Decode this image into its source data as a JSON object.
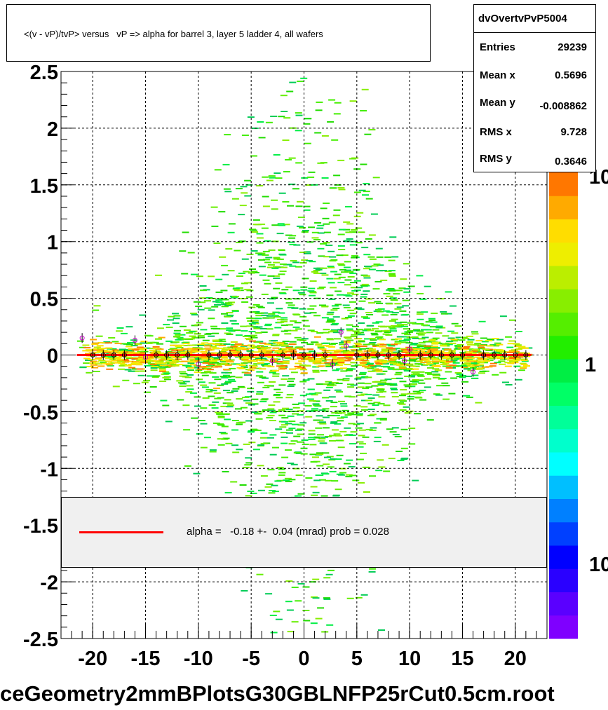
{
  "title": "<(v - vP)/tvP> versus   vP => alpha for barrel 3, layer 5 ladder 4, all wafers",
  "stats": {
    "name": "dvOvertvPvP5004",
    "rows": [
      {
        "label": "Entries",
        "value": "29239"
      },
      {
        "label": "Mean x",
        "value": "0.5696"
      },
      {
        "label": "Mean y",
        "value": "-0.008862"
      },
      {
        "label": "RMS x",
        "value": "9.728"
      },
      {
        "label": "RMS y",
        "value": "0.3646"
      }
    ]
  },
  "legend": {
    "text": "alpha =   -0.18 +-  0.04 (mrad) prob = 0.028",
    "line_color": "#ff0000"
  },
  "palette": {
    "label_top": "10",
    "label_mid": "1",
    "label_bottom": "10"
  },
  "footer": "ceGeometry2mmBPlotsG30GBLNFP25rCut0.5cm.root",
  "chart_data": {
    "type": "heatmap",
    "title": "<(v - vP)/tvP> versus   vP => alpha for barrel 3, layer 5 ladder 4, all wafers",
    "xlabel": "",
    "ylabel": "",
    "xlim": [
      -23,
      23
    ],
    "ylim": [
      -2.5,
      2.5
    ],
    "x_ticks": [
      -20,
      -15,
      -10,
      -5,
      0,
      5,
      10,
      15,
      20
    ],
    "y_ticks": [
      -2.5,
      -2,
      -1.5,
      -1,
      -0.5,
      0,
      0.5,
      1,
      1.5,
      2,
      2.5
    ],
    "grid": true,
    "fit_line": {
      "color": "#ff0000",
      "y": 0.0
    },
    "profile_points": [
      {
        "x": -21,
        "y": 0.15
      },
      {
        "x": -20,
        "y": 0.0
      },
      {
        "x": -19,
        "y": 0.0
      },
      {
        "x": -18,
        "y": 0.0
      },
      {
        "x": -17,
        "y": 0.0
      },
      {
        "x": -16,
        "y": 0.13
      },
      {
        "x": -15,
        "y": -0.02
      },
      {
        "x": -14,
        "y": 0.0
      },
      {
        "x": -13,
        "y": 0.0
      },
      {
        "x": -12,
        "y": 0.0
      },
      {
        "x": -11,
        "y": 0.0
      },
      {
        "x": -10,
        "y": -0.08
      },
      {
        "x": -9,
        "y": 0.0
      },
      {
        "x": -8,
        "y": 0.0
      },
      {
        "x": -7,
        "y": 0.0
      },
      {
        "x": -6,
        "y": 0.0
      },
      {
        "x": -5,
        "y": 0.0
      },
      {
        "x": -4,
        "y": 0.0
      },
      {
        "x": -3,
        "y": -0.05
      },
      {
        "x": -2,
        "y": 0.0
      },
      {
        "x": -1,
        "y": 0.0
      },
      {
        "x": 0,
        "y": 0.0
      },
      {
        "x": 1,
        "y": 0.0
      },
      {
        "x": 2,
        "y": 0.0
      },
      {
        "x": 2.7,
        "y": -0.08
      },
      {
        "x": 3.5,
        "y": 0.2
      },
      {
        "x": 4,
        "y": 0.08
      },
      {
        "x": 5,
        "y": 0.0
      },
      {
        "x": 6,
        "y": 0.0
      },
      {
        "x": 7,
        "y": 0.0
      },
      {
        "x": 8,
        "y": 0.0
      },
      {
        "x": 9,
        "y": 0.0
      },
      {
        "x": 9.5,
        "y": -0.05
      },
      {
        "x": 10,
        "y": 0.05
      },
      {
        "x": 11,
        "y": 0.0
      },
      {
        "x": 12,
        "y": 0.0
      },
      {
        "x": 13,
        "y": 0.0
      },
      {
        "x": 14,
        "y": 0.0
      },
      {
        "x": 15,
        "y": 0.0
      },
      {
        "x": 16,
        "y": -0.15
      },
      {
        "x": 17,
        "y": 0.0
      },
      {
        "x": 18,
        "y": 0.0
      },
      {
        "x": 19,
        "y": 0.0
      },
      {
        "x": 20,
        "y": 0.0
      },
      {
        "x": 21,
        "y": 0.0
      }
    ],
    "palette_colors": [
      "#7f00ff",
      "#5a00ff",
      "#2a00ff",
      "#0000ff",
      "#0040ff",
      "#0080ff",
      "#00bfff",
      "#00ffff",
      "#00ffcc",
      "#00ff99",
      "#00ff66",
      "#00ee44",
      "#22ee00",
      "#55ee00",
      "#88ee00",
      "#bbee00",
      "#eeee00",
      "#ffdd00",
      "#ffaa00",
      "#ff7700"
    ]
  }
}
